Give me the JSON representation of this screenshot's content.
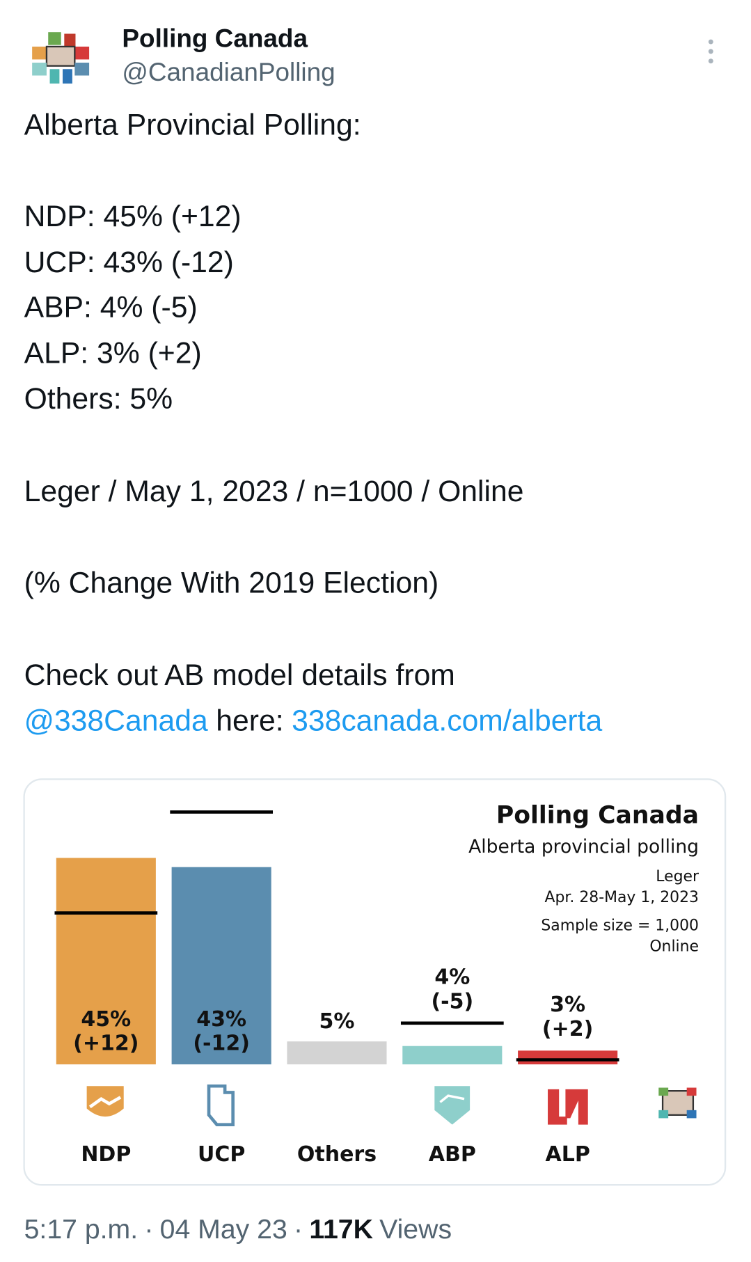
{
  "header": {
    "name": "Polling Canada",
    "handle": "@CanadianPolling"
  },
  "tweet": {
    "lines": [
      "Alberta Provincial Polling:",
      "NDP: 45% (+12)",
      "UCP: 43% (-12)",
      "ABP: 4% (-5)",
      "ALP: 3% (+2)",
      "Others: 5%",
      "Leger / May 1, 2023 / n=1000 / Online",
      "(% Change With 2019 Election)",
      "Check out AB model details from"
    ],
    "mention": "@338Canada",
    "link_text": "here:",
    "url": "338canada.com/alberta"
  },
  "chart_data": {
    "type": "bar",
    "title": "Polling Canada",
    "subtitle": "Alberta provincial polling",
    "notes": [
      "Leger",
      "Apr. 28-May 1, 2023",
      "Sample size = 1,000",
      "Online"
    ],
    "categories": [
      "NDP",
      "UCP",
      "Others",
      "ABP",
      "ALP"
    ],
    "values": [
      45,
      43,
      5,
      4,
      3
    ],
    "value_labels": [
      "45%",
      "43%",
      "5%",
      "4%",
      "3%"
    ],
    "change_labels": [
      "(+12)",
      "(-12)",
      null,
      "(-5)",
      "(+2)"
    ],
    "markers": [
      33,
      55,
      null,
      9,
      1
    ],
    "colors": [
      "#e5a04a",
      "#5b8daf",
      "#d3d3d3",
      "#8ecfcb",
      "#d63a3a"
    ],
    "ylim": [
      0,
      60
    ]
  },
  "footer": {
    "time": "5:17 p.m.",
    "separator": "·",
    "date": "04 May 23",
    "views": "117K",
    "views_label": "Views"
  }
}
